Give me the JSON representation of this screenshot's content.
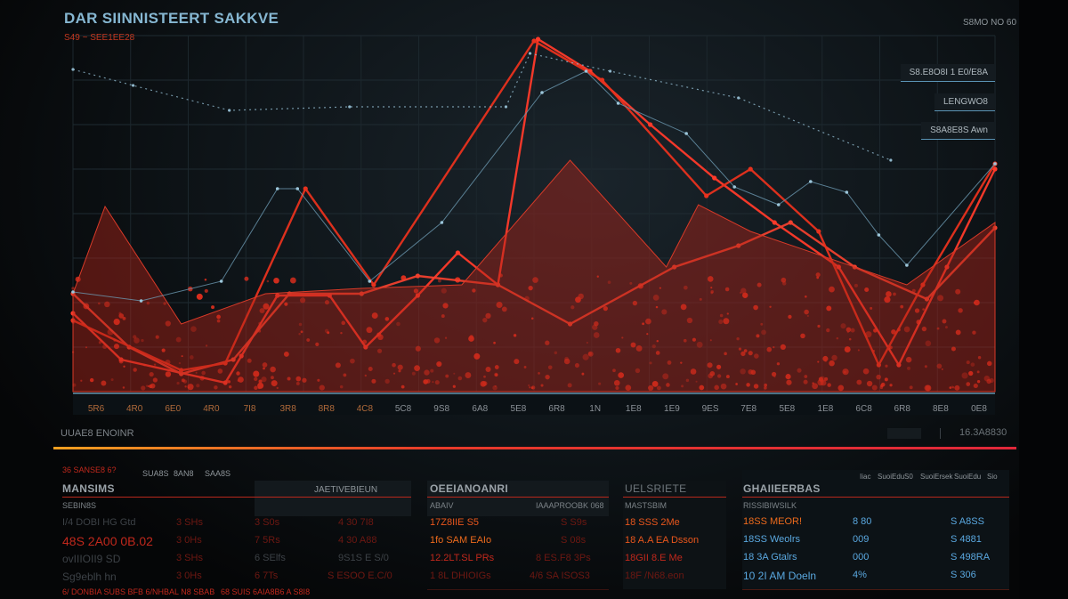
{
  "header": {
    "title": "DAR SIINNISTEERT SAKKVE",
    "subtitle": "S49 ~ SEE1EE28",
    "top_right": "S8MO NO 60"
  },
  "legend": [
    "S8.E8O8I   1 E0/E8A",
    "LENGWO8",
    "S8A8E8S Awn"
  ],
  "chart_data": {
    "type": "line",
    "title": "DAR SIINNISTEERT SAKKVE",
    "xlabel": "",
    "ylabel": "",
    "categories": [
      "5R6",
      "4R0",
      "6E0",
      "4R0",
      "7I8",
      "3R8",
      "8R8",
      "4C8",
      "5C8",
      "9S8",
      "6A8",
      "5E8",
      "6R8",
      "1N",
      "1E8",
      "1E9",
      "9ES",
      "7E8",
      "5E8",
      "1E8",
      "6C8",
      "6R8",
      "8E8",
      "0E8"
    ],
    "ylim": [
      0,
      100
    ],
    "grid": true,
    "legend_position": "top-right",
    "series_colors": [
      "#ff3a2a",
      "#f0402e",
      "#e8321e",
      "#7f2a24",
      "#6c99b0",
      "#8fb6ca"
    ],
    "series": [
      {
        "style": "line",
        "x": [
          0,
          1.2,
          3.8,
          4.2,
          5.1,
          6.4,
          7.3,
          8.6,
          9.6,
          10.6,
          11.6,
          12.9,
          14.4,
          16,
          17.5,
          19.1,
          20.6,
          21.8,
          23
        ],
        "values": [
          22,
          9,
          2.5,
          10,
          27,
          27,
          12.5,
          27,
          39,
          30,
          99,
          90,
          75,
          60,
          47.5,
          35,
          7.5,
          35,
          62.5
        ]
      },
      {
        "style": "line",
        "x": [
          0,
          1.4,
          2.7,
          4,
          5.4,
          7.2,
          8.6,
          10.6,
          12.4,
          15,
          16.6,
          17.9,
          19.5,
          21.3,
          23
        ],
        "values": [
          27.5,
          12.5,
          5,
          9,
          27.5,
          27.5,
          32.5,
          30,
          19,
          35,
          41,
          47.5,
          35,
          26,
          46
        ]
      },
      {
        "style": "line",
        "x": [
          0,
          2.7,
          3.8,
          5.8,
          7.5,
          11.5,
          13.2,
          15.8,
          16.9,
          18.6,
          20.1,
          21.2,
          23
        ],
        "values": [
          20,
          6,
          8,
          57,
          30,
          98.5,
          87.5,
          55,
          62.5,
          45,
          7.5,
          30,
          64
        ]
      },
      {
        "style": "area",
        "x": [
          0,
          0.8,
          2.7,
          4.8,
          7.2,
          9.7,
          12.4,
          14.8,
          15.6,
          16.9,
          20.8,
          23
        ],
        "values": [
          27.5,
          52,
          19,
          27.5,
          29,
          30,
          65,
          35,
          52.5,
          45,
          30,
          47.5
        ]
      },
      {
        "style": "line",
        "x": [
          0,
          1.7,
          3.7,
          5.1,
          5.6,
          7.4,
          9.2,
          11.7,
          12.8,
          13.6,
          15.3,
          16.5,
          17.6,
          18.4,
          19.3,
          20.1,
          20.8,
          23
        ],
        "values": [
          28,
          25.5,
          31,
          57,
          57,
          31,
          47.5,
          84,
          90,
          81,
          72.5,
          57.5,
          52.5,
          59,
          56,
          44,
          35.5,
          64
        ]
      },
      {
        "style": "dotted",
        "x": [
          0,
          1.5,
          3.9,
          6.9,
          10.8,
          11.4,
          13.4,
          16.6,
          20.4
        ],
        "values": [
          90.5,
          86,
          79,
          80,
          80,
          95,
          90,
          82.5,
          65
        ]
      }
    ]
  },
  "footer": {
    "label": "UUAE8 ENOINR",
    "value": "16.3A8830"
  },
  "panel1": {
    "tabs": [
      "36 SANSE8 6?",
      "SUA8S",
      "8AN8",
      "SAA8S"
    ],
    "title": "MANSIMS",
    "header_right": "JAETIVEBIEUN",
    "sub": "SEBIN8S",
    "rows": [
      [
        "I/4 DOBI HG Gtd",
        "3 SHs",
        "3 S0s",
        "4 30 7I8"
      ],
      [
        "48S 2A00 0B.02",
        "3 0Hs",
        "7 5Rs",
        "4 30 A88"
      ],
      [
        "ovIIIOII9 SD",
        "3 SHs",
        "6 SElfs",
        "9S1S E S/0"
      ],
      [
        "Sg9eblh hn",
        "3 0Hs",
        "6 7Ts",
        "S ESOO E.C/0"
      ]
    ],
    "footer_left": "6/ DONBIA SUBS BFB 6/NHBAL N8 SBAB",
    "footer_right": "68 SUIS 6AIA8B6 A S8I8"
  },
  "panel2": {
    "title": "OEEIANOANRI",
    "sub_left": "ABAIV",
    "sub_right": "IAAAPROOBK 068",
    "rows": [
      [
        "17Z8IIE S5",
        "S S9s"
      ],
      [
        "1fo SAM EAIo",
        "S 08s"
      ],
      [
        "12.2LT.SL PRs",
        "8 ES.F8 3Ps"
      ],
      [
        "1 8L DHIOIGs",
        "4/6 SA ISOS3"
      ]
    ]
  },
  "panel3": {
    "title": "UELSRIETE",
    "sub": "MASTSBIM",
    "rows": [
      "18 SSS 2Me",
      "18 A.A EA Dsson",
      "18GII 8.E Me",
      "18F /N68.eon"
    ]
  },
  "panel4": {
    "tabs": [
      "Iiac",
      "SuoiEdu",
      "S0",
      "SuoiErsek",
      "SuoiEdu",
      "Sio"
    ],
    "title": "GHAIIEERBAS",
    "sub": "RISSIBIWSILK",
    "rows": [
      [
        "18SS MEOR!",
        "8 80",
        "S A8SS"
      ],
      [
        "18SS Weolrs",
        "009",
        "S 4881"
      ],
      [
        "18 3A Gtalrs",
        "000",
        "S 498RA"
      ],
      [
        "10 2I AM Doeln",
        "4%",
        "S 306"
      ]
    ]
  }
}
